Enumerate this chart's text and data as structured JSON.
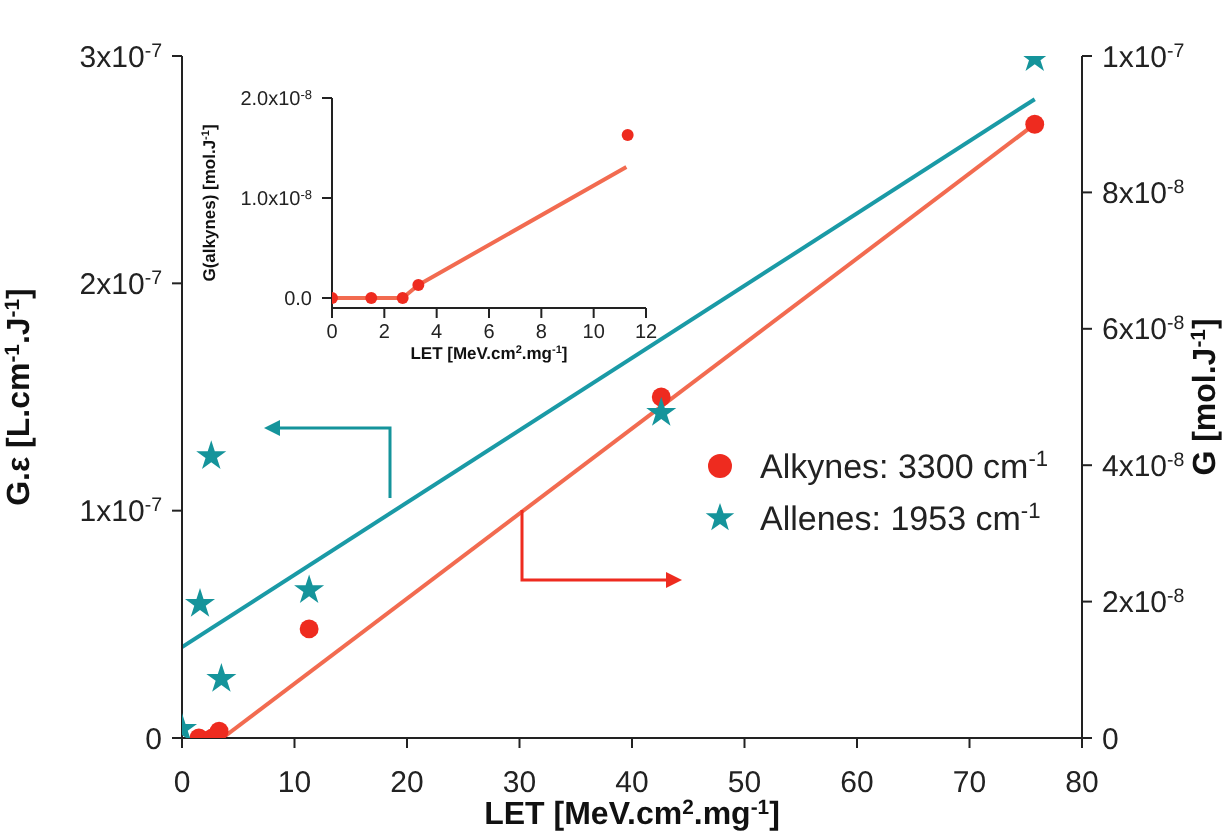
{
  "chart_data": [
    {
      "type": "scatter",
      "xlabel": "LET [MeV.cm$^{2}$.mg$^{-1}$]",
      "ylabel": "G.ε  [L.cm$^{-1}$.J$^{-1}$]",
      "y2label": "G [mol.J$^{-1}$]",
      "xlim": [
        0,
        80
      ],
      "xticks": [
        0,
        10,
        20,
        30,
        40,
        50,
        60,
        70,
        80
      ],
      "ylim": [
        0,
        3e-07
      ],
      "yticks": [
        0,
        {
          "value": 1e-07,
          "label": "1x10$^{-7}$"
        },
        {
          "value": 2e-07,
          "label": "2x10$^{-7}$"
        },
        {
          "value": 3e-07,
          "label": "3x10$^{-7}$"
        }
      ],
      "y2lim": [
        0,
        1e-07
      ],
      "y2ticks": [
        0,
        {
          "value": 2e-08,
          "label": "2x10$^{-8}$"
        },
        {
          "value": 4e-08,
          "label": "4x10$^{-8}$"
        },
        {
          "value": 6e-08,
          "label": "6x10$^{-8}$"
        },
        {
          "value": 8e-08,
          "label": "8x10$^{-8}$"
        },
        {
          "value": 1e-07,
          "label": "1x10$^{-7}$"
        }
      ],
      "legend": "right",
      "series": [
        {
          "name": "Alkynes: 3300 cm$^{-1}$",
          "type": "scatter",
          "axis": "y2",
          "marker": "circle",
          "color": "#ee2b1f",
          "x": [
            1.5,
            2.7,
            3.3,
            11.3,
            42.6,
            75.8
          ],
          "values": [
            0,
            0,
            1e-09,
            1.6e-08,
            5e-08,
            9e-08
          ]
        },
        {
          "name": "Allenes: 1953 cm$^{-1}$",
          "type": "scatter",
          "axis": "y",
          "marker": "star",
          "color": "#15949b",
          "x": [
            0,
            1.6,
            2.6,
            3.5,
            11.3,
            42.6,
            75.8
          ],
          "values": [
            4e-09,
            5.9e-08,
            1.24e-07,
            2.6e-08,
            6.5e-08,
            1.43e-07,
            2.99e-07
          ]
        },
        {
          "type": "line",
          "axis": "y2",
          "color": "#f26b50",
          "x": [
            3.6,
            75.8
          ],
          "values": [
            0,
            9e-08
          ]
        },
        {
          "type": "line",
          "axis": "y",
          "color": "#1a9aa6",
          "x": [
            0,
            75.8
          ],
          "values": [
            4e-08,
            2.81e-07
          ]
        }
      ]
    },
    {
      "type": "scatter",
      "xlabel": "LET [MeV.cm$^{2}$.mg$^{-1}$]",
      "ylabel": "G(alkynes) [mol.J$^{-1}$]",
      "xlim": [
        0,
        12
      ],
      "xticks": [
        0,
        2,
        4,
        6,
        8,
        10,
        12
      ],
      "ylim": [
        -1e-09,
        2e-08
      ],
      "yticks": [
        {
          "value": 0,
          "label": "0.0"
        },
        {
          "value": 1e-08,
          "label": "1.0x10$^{-8}$"
        },
        {
          "value": 2e-08,
          "label": "2.0x10$^{-8}$"
        }
      ],
      "series": [
        {
          "type": "scatter",
          "axis": "y",
          "marker": "circle",
          "color": "#ee2b1f",
          "x": [
            0,
            1.5,
            2.7,
            3.3,
            11.3
          ],
          "values": [
            0,
            0,
            0,
            1.3e-09,
            1.63e-08
          ]
        },
        {
          "type": "line",
          "axis": "y",
          "color": "#f26b50",
          "x": [
            0,
            2.7,
            3.3,
            11.25
          ],
          "values": [
            0,
            0,
            1.3e-09,
            1.31e-08
          ]
        }
      ]
    }
  ]
}
